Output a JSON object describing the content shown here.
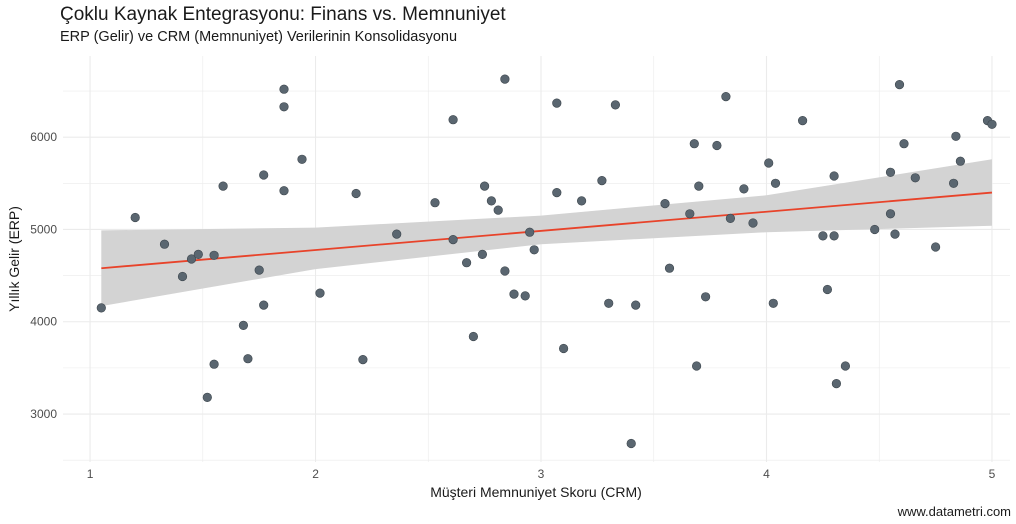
{
  "title": "Çoklu Kaynak Entegrasyonu: Finans vs. Memnuniyet",
  "subtitle": "ERP (Gelir) ve CRM (Memnuniyet) Verilerinin Konsolidasyonu",
  "caption": "www.datametri.com",
  "colors": {
    "points": "#5a6670",
    "trend": "#e8432a",
    "band": "#d3d3d3",
    "grid": "#ebebeb"
  },
  "chart_data": {
    "type": "scatter",
    "xlabel": "Müşteri Memnuniyet Skoru (CRM)",
    "ylabel": "Yıllık Gelir (ERP)",
    "xlim": [
      0.88,
      5.08
    ],
    "ylim": [
      2480,
      6880
    ],
    "x_ticks": [
      1,
      2,
      3,
      4,
      5
    ],
    "y_ticks": [
      3000,
      4000,
      5000,
      6000
    ],
    "grid": true,
    "legend": "none",
    "points": [
      [
        1.05,
        4150
      ],
      [
        1.2,
        5130
      ],
      [
        1.33,
        4840
      ],
      [
        1.41,
        4490
      ],
      [
        1.45,
        4680
      ],
      [
        1.48,
        4730
      ],
      [
        1.52,
        3180
      ],
      [
        1.55,
        4720
      ],
      [
        1.55,
        3540
      ],
      [
        1.59,
        5470
      ],
      [
        1.68,
        3960
      ],
      [
        1.7,
        3600
      ],
      [
        1.75,
        4560
      ],
      [
        1.77,
        4180
      ],
      [
        1.77,
        5590
      ],
      [
        1.86,
        6520
      ],
      [
        1.86,
        6330
      ],
      [
        1.86,
        5420
      ],
      [
        1.94,
        5760
      ],
      [
        2.02,
        4310
      ],
      [
        2.18,
        5390
      ],
      [
        2.21,
        3590
      ],
      [
        2.36,
        4950
      ],
      [
        2.53,
        5290
      ],
      [
        2.61,
        4890
      ],
      [
        2.61,
        6190
      ],
      [
        2.67,
        4640
      ],
      [
        2.7,
        3840
      ],
      [
        2.74,
        4730
      ],
      [
        2.75,
        5470
      ],
      [
        2.78,
        5310
      ],
      [
        2.81,
        5210
      ],
      [
        2.84,
        4550
      ],
      [
        2.84,
        6630
      ],
      [
        2.88,
        4300
      ],
      [
        2.93,
        4280
      ],
      [
        2.95,
        4970
      ],
      [
        2.97,
        4780
      ],
      [
        3.07,
        6370
      ],
      [
        3.07,
        5400
      ],
      [
        3.1,
        3710
      ],
      [
        3.18,
        5310
      ],
      [
        3.27,
        5530
      ],
      [
        3.3,
        4200
      ],
      [
        3.33,
        6350
      ],
      [
        3.4,
        2680
      ],
      [
        3.42,
        4180
      ],
      [
        3.55,
        5280
      ],
      [
        3.57,
        4580
      ],
      [
        3.66,
        5170
      ],
      [
        3.68,
        5930
      ],
      [
        3.69,
        3520
      ],
      [
        3.7,
        5470
      ],
      [
        3.73,
        4270
      ],
      [
        3.78,
        5910
      ],
      [
        3.82,
        6440
      ],
      [
        3.84,
        5120
      ],
      [
        3.9,
        5440
      ],
      [
        3.94,
        5070
      ],
      [
        4.01,
        5720
      ],
      [
        4.03,
        4200
      ],
      [
        4.04,
        5500
      ],
      [
        4.16,
        6180
      ],
      [
        4.25,
        4930
      ],
      [
        4.27,
        4350
      ],
      [
        4.3,
        5580
      ],
      [
        4.3,
        4930
      ],
      [
        4.31,
        3330
      ],
      [
        4.35,
        3520
      ],
      [
        4.48,
        5000
      ],
      [
        4.55,
        5620
      ],
      [
        4.55,
        5170
      ],
      [
        4.57,
        4950
      ],
      [
        4.59,
        6570
      ],
      [
        4.61,
        5930
      ],
      [
        4.66,
        5560
      ],
      [
        4.75,
        4810
      ],
      [
        4.83,
        5500
      ],
      [
        4.84,
        6010
      ],
      [
        4.86,
        5740
      ],
      [
        4.98,
        6180
      ],
      [
        5.0,
        6140
      ]
    ],
    "trend_line": {
      "x": [
        1.05,
        5.0
      ],
      "y": [
        4580,
        5400
      ]
    },
    "confidence_band": {
      "x": [
        1.05,
        2.0,
        3.0,
        4.0,
        5.0
      ],
      "lower": [
        4170,
        4570,
        4840,
        4970,
        5040
      ],
      "upper": [
        4990,
        5020,
        5150,
        5370,
        5760
      ]
    }
  }
}
